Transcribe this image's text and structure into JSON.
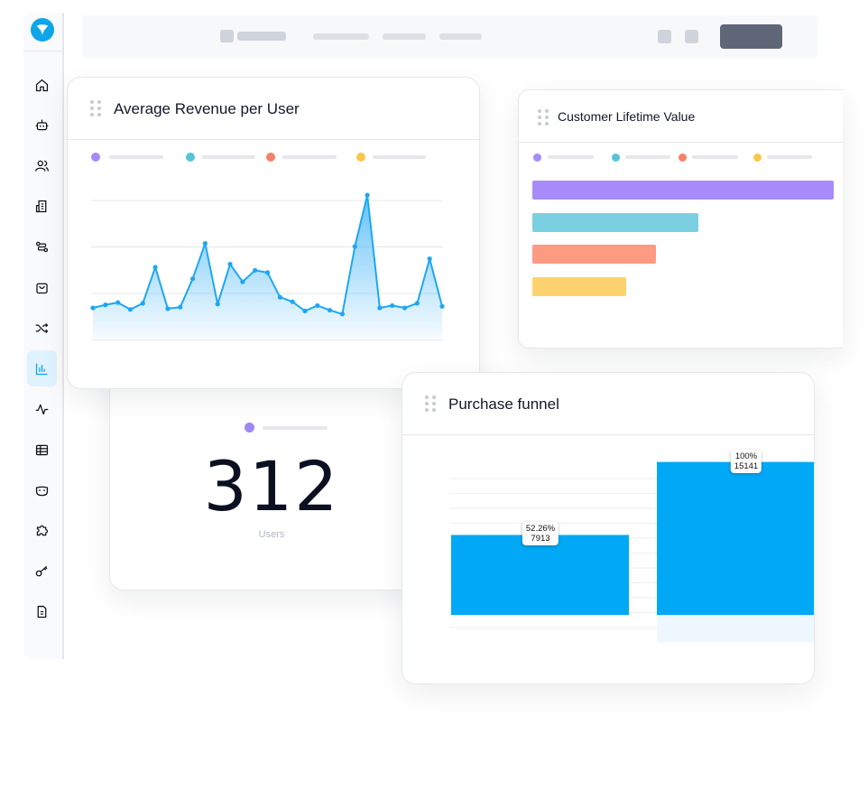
{
  "colors": {
    "accent": "#0ea5e9",
    "purple": "#a78bfa",
    "teal": "#7ad0e0",
    "salmon": "#fd9a82",
    "yellow": "#fdd26e",
    "funnel_blue": "#00a8f5"
  },
  "sidebar": {
    "logo": "logo-icon",
    "items": [
      {
        "icon": "home-icon"
      },
      {
        "icon": "robot-icon"
      },
      {
        "icon": "users-icon"
      },
      {
        "icon": "building-icon"
      },
      {
        "icon": "flow-icon"
      },
      {
        "icon": "shopping-bag-icon"
      },
      {
        "icon": "shuffle-icon"
      },
      {
        "icon": "bar-chart-icon",
        "active": true
      },
      {
        "icon": "activity-icon"
      },
      {
        "icon": "table-icon"
      },
      {
        "icon": "mask-icon"
      },
      {
        "icon": "puzzle-icon"
      },
      {
        "icon": "key-icon"
      },
      {
        "icon": "document-icon"
      }
    ]
  },
  "arpu_card": {
    "title": "Average Revenue per User",
    "chart_data": {
      "type": "area",
      "y": [
        4.0,
        4.4,
        4.7,
        3.8,
        4.6,
        9.3,
        3.9,
        4.1,
        7.8,
        12.4,
        4.5,
        9.7,
        7.4,
        8.9,
        8.6,
        5.4,
        4.8,
        3.6,
        4.3,
        3.7,
        3.2,
        12.0,
        18.7,
        4.0,
        4.3,
        4.0,
        4.6,
        10.4,
        4.2
      ],
      "ylim": [
        0,
        20
      ],
      "grid": true
    }
  },
  "clv_card": {
    "title": "Customer Lifetime Value",
    "chart_data": {
      "type": "bar",
      "orientation": "horizontal",
      "values": [
        100,
        55,
        41,
        31
      ],
      "xlim": [
        0,
        100
      ]
    }
  },
  "users_card": {
    "value": "312",
    "label": "Users"
  },
  "funnel_card": {
    "title": "Purchase funnel",
    "chart_data": {
      "type": "bar",
      "values": [
        7913,
        15141
      ],
      "percent_labels": [
        "52.26%",
        "100%"
      ],
      "value_labels": [
        "7913",
        "15141"
      ],
      "ylim": [
        0,
        16000
      ]
    }
  }
}
